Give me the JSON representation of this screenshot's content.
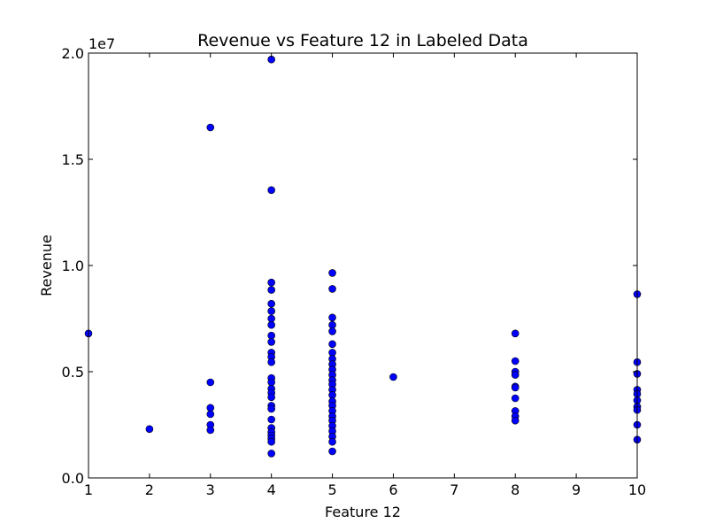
{
  "chart_data": {
    "type": "scatter",
    "title": "Revenue vs Feature 12 in Labeled Data",
    "xlabel": "Feature 12",
    "ylabel": "Revenue",
    "y_multiplier_label": "1e7",
    "xlim": [
      1,
      10
    ],
    "ylim": [
      0,
      20000000
    ],
    "x_ticks": [
      1,
      2,
      3,
      4,
      5,
      6,
      7,
      8,
      9,
      10
    ],
    "x_tick_labels": [
      "1",
      "2",
      "3",
      "4",
      "5",
      "6",
      "7",
      "8",
      "9",
      "10"
    ],
    "y_ticks": [
      0,
      5000000,
      10000000,
      15000000,
      20000000
    ],
    "y_tick_labels": [
      "0.0",
      "0.5",
      "1.0",
      "1.5",
      "2.0"
    ],
    "grid": false,
    "marker_color": "#0000ff",
    "series": [
      {
        "points": [
          [
            1,
            6800000
          ],
          [
            2,
            2300000
          ],
          [
            3,
            16500000
          ],
          [
            3,
            4500000
          ],
          [
            3,
            3300000
          ],
          [
            3,
            3000000
          ],
          [
            3,
            2500000
          ],
          [
            3,
            2250000
          ],
          [
            4,
            19700000
          ],
          [
            4,
            13550000
          ],
          [
            4,
            9200000
          ],
          [
            4,
            8850000
          ],
          [
            4,
            8200000
          ],
          [
            4,
            7850000
          ],
          [
            4,
            7500000
          ],
          [
            4,
            7200000
          ],
          [
            4,
            6700000
          ],
          [
            4,
            6400000
          ],
          [
            4,
            5900000
          ],
          [
            4,
            5700000
          ],
          [
            4,
            5450000
          ],
          [
            4,
            4700000
          ],
          [
            4,
            4500000
          ],
          [
            4,
            4200000
          ],
          [
            4,
            4000000
          ],
          [
            4,
            3800000
          ],
          [
            4,
            3400000
          ],
          [
            4,
            3250000
          ],
          [
            4,
            2750000
          ],
          [
            4,
            2350000
          ],
          [
            4,
            2150000
          ],
          [
            4,
            2000000
          ],
          [
            4,
            1850000
          ],
          [
            4,
            1700000
          ],
          [
            4,
            1150000
          ],
          [
            5,
            9650000
          ],
          [
            5,
            8900000
          ],
          [
            5,
            7550000
          ],
          [
            5,
            7200000
          ],
          [
            5,
            6900000
          ],
          [
            5,
            6300000
          ],
          [
            5,
            5900000
          ],
          [
            5,
            5600000
          ],
          [
            5,
            5350000
          ],
          [
            5,
            5100000
          ],
          [
            5,
            4850000
          ],
          [
            5,
            4600000
          ],
          [
            5,
            4400000
          ],
          [
            5,
            4150000
          ],
          [
            5,
            3900000
          ],
          [
            5,
            3600000
          ],
          [
            5,
            3400000
          ],
          [
            5,
            3150000
          ],
          [
            5,
            2900000
          ],
          [
            5,
            2700000
          ],
          [
            5,
            2450000
          ],
          [
            5,
            2200000
          ],
          [
            5,
            1950000
          ],
          [
            5,
            1700000
          ],
          [
            5,
            1250000
          ],
          [
            6,
            4750000
          ],
          [
            8,
            6800000
          ],
          [
            8,
            5500000
          ],
          [
            8,
            5000000
          ],
          [
            8,
            4850000
          ],
          [
            8,
            4300000
          ],
          [
            8,
            4250000
          ],
          [
            8,
            3750000
          ],
          [
            8,
            3150000
          ],
          [
            8,
            2900000
          ],
          [
            8,
            2700000
          ],
          [
            10,
            8650000
          ],
          [
            10,
            5450000
          ],
          [
            10,
            4900000
          ],
          [
            10,
            4150000
          ],
          [
            10,
            3950000
          ],
          [
            10,
            3650000
          ],
          [
            10,
            3350000
          ],
          [
            10,
            3200000
          ],
          [
            10,
            2500000
          ],
          [
            10,
            1800000
          ]
        ]
      }
    ]
  }
}
